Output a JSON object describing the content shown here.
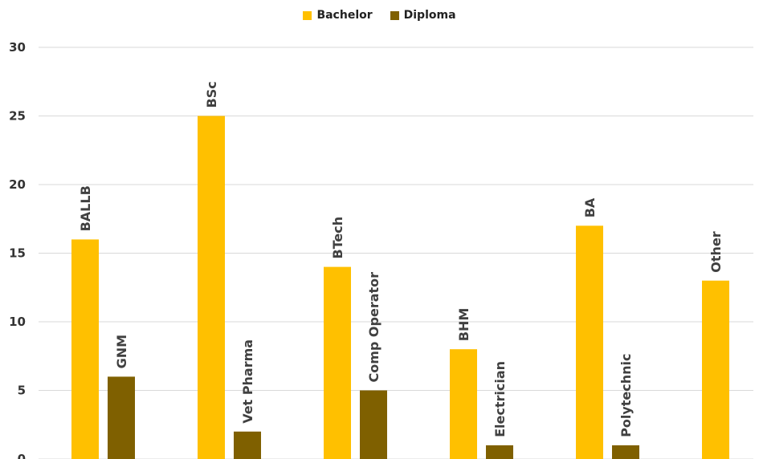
{
  "chart_data": {
    "type": "bar",
    "y_ticks": [
      "0",
      "5",
      "10",
      "15",
      "20",
      "25",
      "30"
    ],
    "ylim": [
      0,
      30
    ],
    "grid": true,
    "legend_position": "top-center",
    "groups": 6,
    "series": [
      {
        "name": "Bachelor",
        "color": "#FFC000",
        "points": [
          {
            "group": 0,
            "label": "BALLB",
            "value": 16
          },
          {
            "group": 1,
            "label": "BSc",
            "value": 25
          },
          {
            "group": 2,
            "label": "BTech",
            "value": 14
          },
          {
            "group": 3,
            "label": "BHM",
            "value": 8
          },
          {
            "group": 4,
            "label": "BA",
            "value": 17
          },
          {
            "group": 5,
            "label": "Other",
            "value": 13
          }
        ]
      },
      {
        "name": "Diploma",
        "color": "#7F6000",
        "points": [
          {
            "group": 0,
            "label": "GNM",
            "value": 6
          },
          {
            "group": 1,
            "label": "Vet Pharma",
            "value": 2
          },
          {
            "group": 2,
            "label": "Comp Operator",
            "value": 5
          },
          {
            "group": 3,
            "label": "Electrician",
            "value": 1
          },
          {
            "group": 4,
            "label": "Polytechnic",
            "value": 1
          }
        ]
      }
    ]
  }
}
